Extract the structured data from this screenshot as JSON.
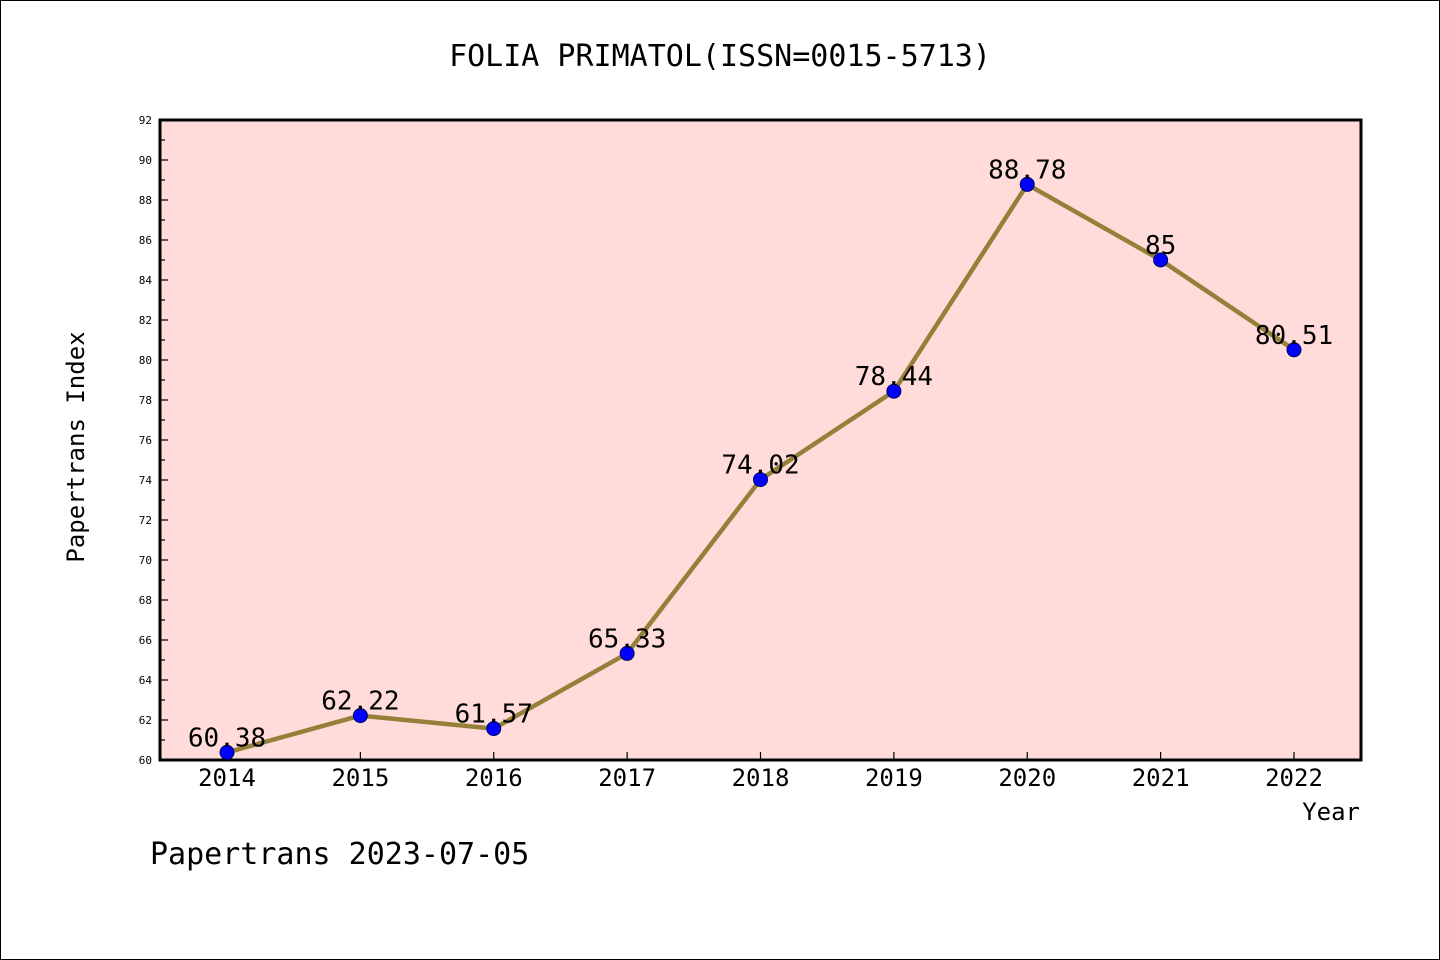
{
  "chart_data": {
    "type": "line",
    "title": "FOLIA PRIMATOL(ISSN=0015-5713)",
    "xlabel": "Year",
    "ylabel": "Papertrans Index",
    "x": [
      "2014",
      "2015",
      "2016",
      "2017",
      "2018",
      "2019",
      "2020",
      "2021",
      "2022"
    ],
    "series": [
      {
        "values": [
          60.38,
          62.22,
          61.57,
          65.33,
          74.02,
          78.44,
          88.78,
          85,
          80.51
        ],
        "labels": [
          "60.38",
          "62.22",
          "61.57",
          "65.33",
          "74.02",
          "78.44",
          "88.78",
          "85",
          "80.51"
        ]
      }
    ],
    "ylim": [
      60,
      92
    ],
    "yticks": [
      "60",
      "62",
      "64",
      "66",
      "68",
      "70",
      "72",
      "74",
      "76",
      "78",
      "80",
      "82",
      "84",
      "86",
      "88",
      "90",
      "92"
    ],
    "grid": false,
    "colors": {
      "plot_background": "#FFDCDA",
      "line": "#948038",
      "marker": "#0000FF"
    }
  },
  "footer": "Papertrans 2023-07-05"
}
